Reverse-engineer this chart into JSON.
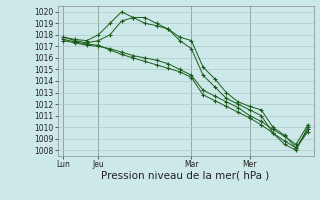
{
  "bg_color": "#cce8e8",
  "grid_color": "#b0c8c8",
  "line_color": "#1a5c1a",
  "ylabel_fontsize": 5.5,
  "xlabel_fontsize": 7.5,
  "xlabel": "Pression niveau de la mer( hPa )",
  "ylim": [
    1007.5,
    1020.5
  ],
  "yticks": [
    1008,
    1009,
    1010,
    1011,
    1012,
    1013,
    1014,
    1015,
    1016,
    1017,
    1018,
    1019,
    1020
  ],
  "xtick_labels": [
    "Lun",
    "Jeu",
    "Mar",
    "Mer"
  ],
  "xtick_positions": [
    0,
    3,
    11,
    16
  ],
  "vline_positions": [
    0,
    3,
    11,
    16
  ],
  "num_points": 22,
  "line1_x": [
    0,
    1,
    2,
    3,
    4,
    5,
    6,
    7,
    8,
    9,
    10,
    11,
    12,
    13,
    14,
    15,
    16,
    17,
    18,
    19,
    20,
    21
  ],
  "line1_y": [
    1017.8,
    1017.6,
    1017.5,
    1018.0,
    1019.0,
    1020.0,
    1019.5,
    1019.0,
    1018.8,
    1018.5,
    1017.8,
    1017.5,
    1015.2,
    1014.2,
    1013.0,
    1012.2,
    1011.8,
    1011.5,
    1010.0,
    1009.3,
    1008.2,
    1009.8
  ],
  "line2_x": [
    0,
    1,
    2,
    3,
    4,
    5,
    6,
    7,
    8,
    9,
    10,
    11,
    12,
    13,
    14,
    15,
    16,
    17,
    18,
    19,
    20,
    21
  ],
  "line2_y": [
    1017.8,
    1017.5,
    1017.3,
    1017.5,
    1018.0,
    1019.2,
    1019.5,
    1019.5,
    1019.0,
    1018.5,
    1017.5,
    1016.8,
    1014.5,
    1013.5,
    1012.5,
    1012.0,
    1011.5,
    1011.0,
    1009.5,
    1008.5,
    1008.0,
    1010.0
  ],
  "line3_x": [
    0,
    1,
    2,
    3,
    4,
    5,
    6,
    7,
    8,
    9,
    10,
    11,
    12,
    13,
    14,
    15,
    16,
    17,
    18,
    19,
    20,
    21
  ],
  "line3_y": [
    1017.5,
    1017.3,
    1017.1,
    1017.0,
    1016.8,
    1016.5,
    1016.2,
    1016.0,
    1015.8,
    1015.5,
    1015.0,
    1014.5,
    1013.2,
    1012.7,
    1012.2,
    1011.7,
    1011.0,
    1010.5,
    1009.8,
    1009.2,
    1008.5,
    1010.2
  ],
  "line4_x": [
    0,
    1,
    2,
    3,
    4,
    5,
    6,
    7,
    8,
    9,
    10,
    11,
    12,
    13,
    14,
    15,
    16,
    17,
    18,
    19,
    20,
    21
  ],
  "line4_y": [
    1017.6,
    1017.4,
    1017.2,
    1017.1,
    1016.7,
    1016.3,
    1016.0,
    1015.7,
    1015.4,
    1015.1,
    1014.8,
    1014.3,
    1012.8,
    1012.3,
    1011.8,
    1011.3,
    1010.8,
    1010.2,
    1009.5,
    1008.8,
    1008.2,
    1009.6
  ]
}
